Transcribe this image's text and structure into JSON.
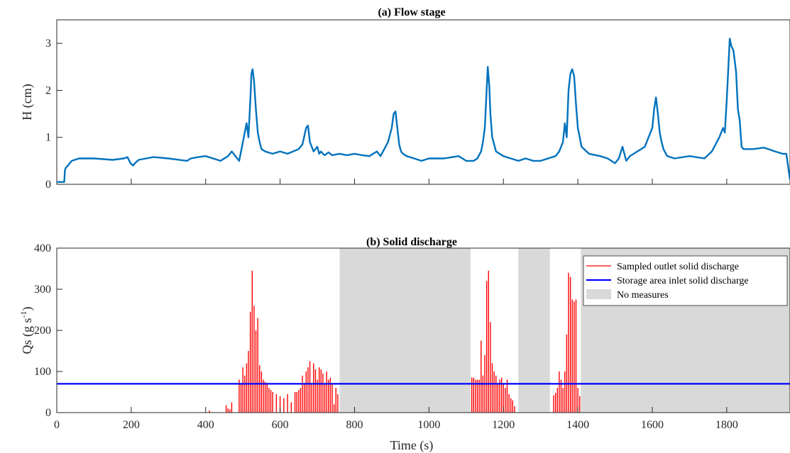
{
  "chart_data": [
    {
      "type": "line",
      "title": "(a) Flow stage",
      "ylabel": "H (cm)",
      "xlim": [
        0,
        1970
      ],
      "ylim": [
        0,
        3.5
      ],
      "yticks": [
        0,
        1,
        2,
        3
      ],
      "color": "#0072BD",
      "series": [
        {
          "x": [
            0,
            20,
            22,
            24,
            30,
            40,
            60,
            100,
            150,
            180,
            190,
            198,
            205,
            210,
            220,
            240,
            260,
            300,
            350,
            360,
            380,
            400,
            420,
            440,
            460,
            470,
            480,
            490,
            495,
            500,
            510,
            515,
            520,
            523,
            526,
            530,
            535,
            540,
            545,
            550,
            560,
            580,
            600,
            620,
            650,
            660,
            670,
            675,
            680,
            690,
            700,
            705,
            710,
            715,
            720,
            730,
            740,
            760,
            780,
            800,
            820,
            840,
            850,
            860,
            870,
            880,
            890,
            900,
            905,
            910,
            915,
            920,
            925,
            930,
            940,
            960,
            980,
            1000,
            1040,
            1080,
            1100,
            1120,
            1130,
            1140,
            1145,
            1150,
            1155,
            1158,
            1162,
            1165,
            1170,
            1180,
            1200,
            1220,
            1240,
            1260,
            1280,
            1300,
            1320,
            1340,
            1350,
            1360,
            1365,
            1370,
            1375,
            1380,
            1385,
            1390,
            1395,
            1400,
            1410,
            1430,
            1460,
            1480,
            1500,
            1510,
            1520,
            1530,
            1540,
            1560,
            1580,
            1590,
            1600,
            1605,
            1610,
            1615,
            1620,
            1625,
            1630,
            1640,
            1660,
            1700,
            1740,
            1760,
            1780,
            1790,
            1795,
            1800,
            1805,
            1808,
            1812,
            1818,
            1825,
            1830,
            1835,
            1840,
            1845,
            1850,
            1870,
            1900,
            1930,
            1950,
            1960,
            1970
          ],
          "y": [
            0.05,
            0.05,
            0.3,
            0.35,
            0.4,
            0.5,
            0.55,
            0.55,
            0.52,
            0.55,
            0.58,
            0.45,
            0.4,
            0.45,
            0.52,
            0.55,
            0.58,
            0.55,
            0.5,
            0.55,
            0.58,
            0.6,
            0.55,
            0.5,
            0.6,
            0.7,
            0.6,
            0.5,
            0.7,
            0.9,
            1.3,
            1.0,
            1.8,
            2.35,
            2.45,
            2.2,
            1.6,
            1.1,
            0.9,
            0.75,
            0.7,
            0.65,
            0.7,
            0.65,
            0.75,
            0.85,
            1.2,
            1.25,
            0.9,
            0.7,
            0.8,
            0.65,
            0.7,
            0.65,
            0.62,
            0.68,
            0.62,
            0.65,
            0.62,
            0.65,
            0.62,
            0.6,
            0.65,
            0.7,
            0.6,
            0.75,
            0.9,
            1.2,
            1.5,
            1.55,
            1.2,
            0.85,
            0.7,
            0.65,
            0.6,
            0.55,
            0.5,
            0.55,
            0.55,
            0.6,
            0.5,
            0.5,
            0.55,
            0.7,
            0.9,
            1.2,
            2.0,
            2.5,
            2.1,
            1.5,
            1.0,
            0.7,
            0.6,
            0.55,
            0.5,
            0.55,
            0.5,
            0.5,
            0.55,
            0.6,
            0.7,
            0.9,
            1.3,
            1.0,
            2.0,
            2.35,
            2.45,
            2.3,
            1.7,
            1.2,
            0.8,
            0.65,
            0.6,
            0.55,
            0.45,
            0.55,
            0.8,
            0.5,
            0.6,
            0.7,
            0.8,
            1.0,
            1.2,
            1.6,
            1.85,
            1.5,
            1.1,
            0.9,
            0.75,
            0.6,
            0.55,
            0.6,
            0.55,
            0.7,
            1.0,
            1.2,
            1.1,
            1.8,
            2.6,
            3.1,
            2.95,
            2.85,
            2.4,
            1.6,
            1.35,
            0.8,
            0.75,
            0.75,
            0.75,
            0.78,
            0.7,
            0.65,
            0.65,
            0.1
          ]
        }
      ]
    },
    {
      "type": "bar",
      "title": "(b) Solid discharge",
      "xlabel": "Time (s)",
      "ylabel_main": "Qs (g s",
      "ylabel_sup": "-1",
      "ylabel_end": ")",
      "xlim": [
        0,
        1970
      ],
      "ylim": [
        0,
        400
      ],
      "xticks": [
        0,
        200,
        400,
        600,
        800,
        1000,
        1200,
        1400,
        1600,
        1800
      ],
      "yticks": [
        0,
        100,
        200,
        300,
        400
      ],
      "no_measures": [
        [
          760,
          1112
        ],
        [
          1240,
          1325
        ],
        [
          1408,
          1970
        ]
      ],
      "inlet_discharge": 70,
      "colors": {
        "bars": "#ff0000",
        "inlet": "#0000ff",
        "shade": "#d9d9d9"
      },
      "samples": {
        "x": [
          410,
          455,
          460,
          465,
          470,
          490,
          495,
          500,
          505,
          510,
          515,
          520,
          525,
          530,
          535,
          540,
          545,
          550,
          555,
          560,
          565,
          570,
          575,
          580,
          590,
          600,
          610,
          620,
          630,
          640,
          645,
          650,
          655,
          660,
          665,
          670,
          675,
          680,
          685,
          690,
          695,
          700,
          705,
          710,
          715,
          720,
          725,
          730,
          735,
          740,
          745,
          750,
          755,
          1115,
          1120,
          1125,
          1130,
          1135,
          1140,
          1145,
          1150,
          1155,
          1160,
          1165,
          1170,
          1175,
          1180,
          1185,
          1190,
          1195,
          1200,
          1205,
          1210,
          1215,
          1220,
          1225,
          1230,
          1335,
          1340,
          1345,
          1350,
          1355,
          1360,
          1365,
          1370,
          1375,
          1380,
          1385,
          1390,
          1395,
          1400,
          1405
        ],
        "y": [
          5,
          18,
          10,
          8,
          25,
          80,
          70,
          110,
          90,
          120,
          150,
          245,
          345,
          260,
          200,
          230,
          115,
          100,
          80,
          75,
          70,
          60,
          55,
          50,
          45,
          40,
          35,
          45,
          25,
          50,
          50,
          55,
          60,
          90,
          70,
          100,
          110,
          125,
          70,
          120,
          105,
          80,
          110,
          105,
          95,
          70,
          100,
          80,
          85,
          70,
          20,
          60,
          45,
          85,
          85,
          80,
          80,
          80,
          175,
          90,
          140,
          320,
          345,
          220,
          120,
          100,
          90,
          70,
          80,
          85,
          70,
          60,
          80,
          45,
          35,
          30,
          15,
          42,
          48,
          60,
          100,
          80,
          60,
          100,
          190,
          340,
          330,
          275,
          270,
          275,
          60,
          40
        ]
      },
      "legend": {
        "placement": "top-right",
        "entries": [
          "Sampled outlet solid discharge",
          "Storage area inlet solid discharge",
          "No measures"
        ]
      }
    }
  ]
}
